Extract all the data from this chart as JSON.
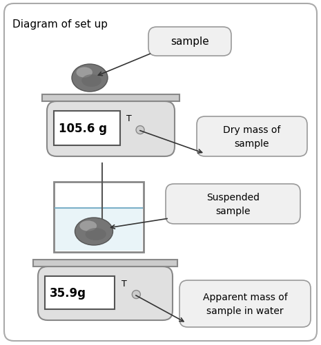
{
  "title": "Diagram of set up",
  "sample_label": "sample",
  "dry_mass_label": "Dry mass of\nsample",
  "dry_mass_value": "105.6 g",
  "suspended_label": "Suspended\nsample",
  "apparent_mass_label": "Apparent mass of\nsample in water",
  "apparent_mass_value": "35.9g",
  "bg_color": "#ffffff",
  "outer_border_ec": "#aaaaaa",
  "scale_fc": "#e0e0e0",
  "scale_ec": "#888888",
  "platform_fc": "#cccccc",
  "platform_ec": "#888888",
  "screen_fc": "#ffffff",
  "screen_ec": "#555555",
  "callout_fc": "#f0f0f0",
  "callout_ec": "#999999",
  "rock_fc": "#888888",
  "rock_ec": "#555555",
  "rock_hi": "#b0b0b0",
  "rock_sh": "#555555",
  "water_fc": "#d0e8f0",
  "wire_color": "#555555",
  "beaker_ec": "#888888",
  "arrow_color": "#333333",
  "text_color": "#000000"
}
